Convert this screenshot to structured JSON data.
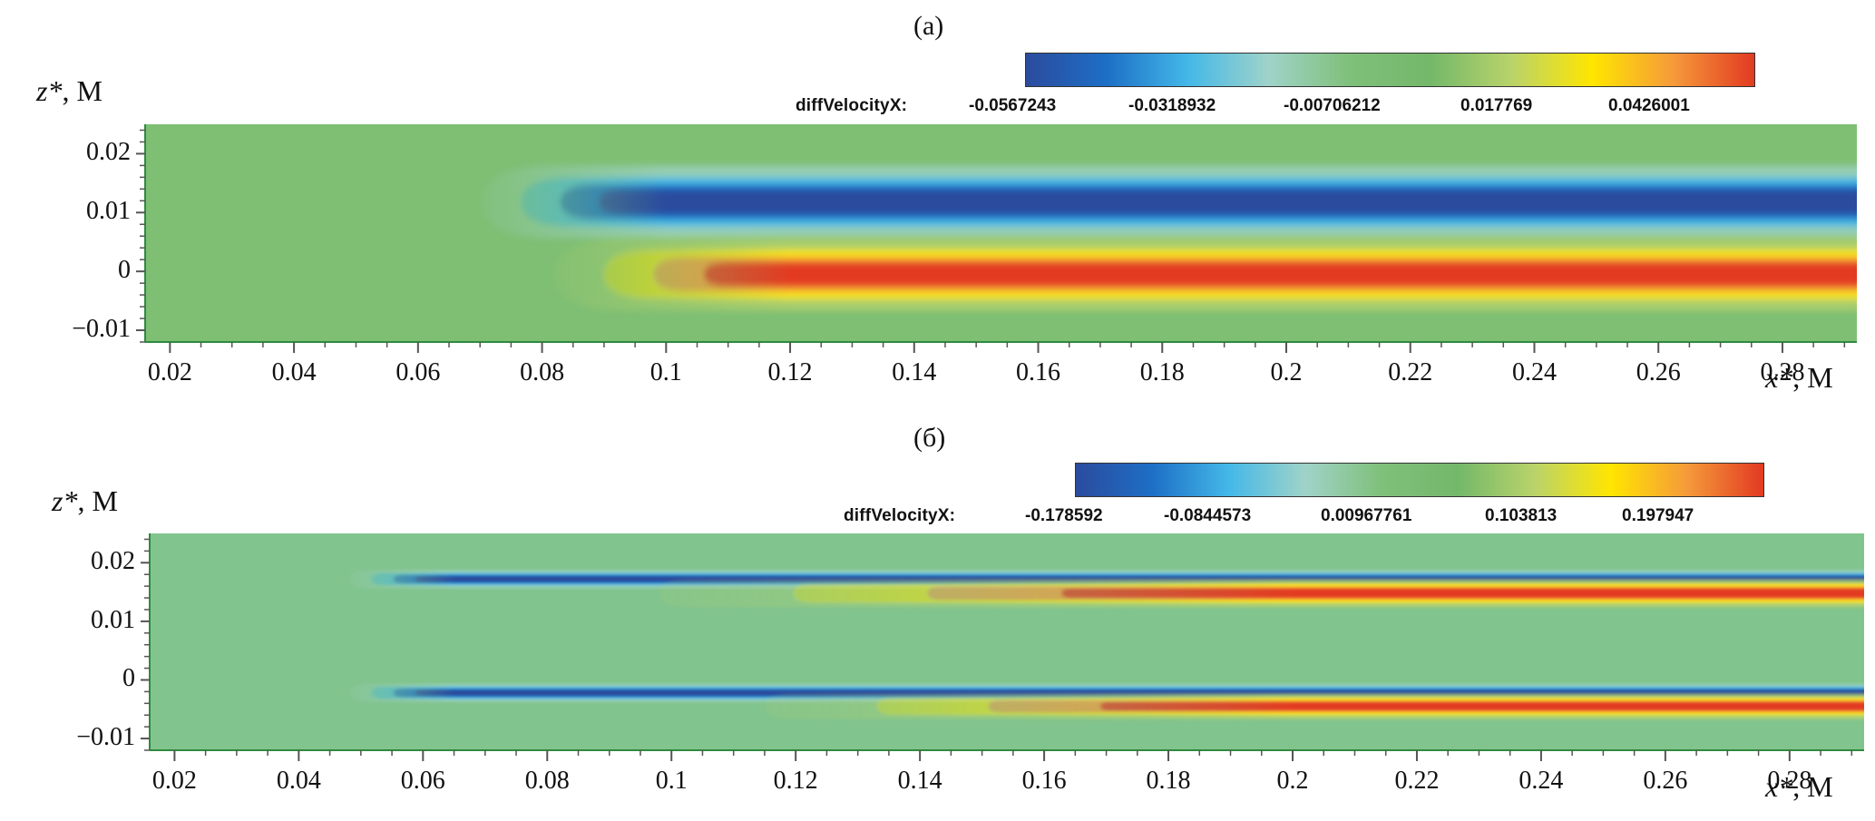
{
  "chart_data": [
    {
      "type": "heatmap",
      "panel_label": "(a)",
      "title": "(a)",
      "xlabel_var": "x*",
      "xlabel_unit": ", M",
      "ylabel_var": "z*",
      "ylabel_unit": ", M",
      "xlim": [
        0.016,
        0.292
      ],
      "ylim": [
        -0.012,
        0.025
      ],
      "x_ticks": [
        "0.02",
        "0.04",
        "0.06",
        "0.08",
        "0.1",
        "0.12",
        "0.14",
        "0.16",
        "0.18",
        "0.2",
        "0.22",
        "0.24",
        "0.26",
        "0.28"
      ],
      "x_tick_values": [
        0.02,
        0.04,
        0.06,
        0.08,
        0.1,
        0.12,
        0.14,
        0.16,
        0.18,
        0.2,
        0.22,
        0.24,
        0.26,
        0.28
      ],
      "y_ticks": [
        "0.02",
        "0.01",
        "0",
        "−0.01"
      ],
      "y_tick_values": [
        0.02,
        0.01,
        0,
        -0.01
      ],
      "colorbar": {
        "variable": "diffVelocityX:",
        "tick_labels": [
          "-0.0567243",
          "-0.0318932",
          "-0.00706212",
          "0.017769",
          "0.0426001"
        ],
        "min": -0.0567243,
        "max": 0.0426001,
        "colormap": [
          "#2b4b9e",
          "#1d6fc6",
          "#44b8e8",
          "#9fd3c9",
          "#7fc07a",
          "#74b86a",
          "#b9d36a",
          "#ffe600",
          "#f59a3a",
          "#e23a22"
        ]
      },
      "background": "#7ebf74",
      "structures": [
        {
          "name": "low-velocity-band",
          "sign": "negative",
          "z_center": 0.0118,
          "z_halfwidth": 0.0028,
          "x_onset": 0.065,
          "x_full": 0.1,
          "peak_level": 0.0,
          "fade_start": 0.045
        },
        {
          "name": "high-velocity-band",
          "sign": "positive",
          "z_center": -0.0005,
          "z_halfwidth": 0.0028,
          "x_onset": 0.075,
          "x_full": 0.12,
          "peak_level": 1.0,
          "fade_start": 0.055
        }
      ]
    },
    {
      "type": "heatmap",
      "panel_label": "(б)",
      "title": "(б)",
      "xlabel_var": "x*",
      "xlabel_unit": ", M",
      "ylabel_var": "z*",
      "ylabel_unit": ", M",
      "xlim": [
        0.016,
        0.292
      ],
      "ylim": [
        -0.012,
        0.025
      ],
      "x_ticks": [
        "0.02",
        "0.04",
        "0.06",
        "0.08",
        "0.1",
        "0.12",
        "0.14",
        "0.16",
        "0.18",
        "0.2",
        "0.22",
        "0.24",
        "0.26",
        "0.28"
      ],
      "x_tick_values": [
        0.02,
        0.04,
        0.06,
        0.08,
        0.1,
        0.12,
        0.14,
        0.16,
        0.18,
        0.2,
        0.22,
        0.24,
        0.26,
        0.28
      ],
      "y_ticks": [
        "0.02",
        "0.01",
        "0",
        "−0.01"
      ],
      "y_tick_values": [
        0.02,
        0.01,
        0,
        -0.01
      ],
      "colorbar": {
        "variable": "diffVelocityX:",
        "tick_labels": [
          "-0.178592",
          "-0.0844573",
          "0.00967761",
          "0.103813",
          "0.197947"
        ],
        "min": -0.178592,
        "max": 0.197947,
        "colormap": [
          "#2b4b9e",
          "#1d6fc6",
          "#44b8e8",
          "#9fd3c9",
          "#7fc07a",
          "#74b86a",
          "#b9d36a",
          "#ffe600",
          "#f59a3a",
          "#e23a22"
        ]
      },
      "background": "#82c48e",
      "structures": [
        {
          "name": "upper-negative-streak",
          "sign": "negative",
          "z_center": 0.0172,
          "z_halfwidth": 0.0007,
          "x_onset": 0.045,
          "x_full": 0.065
        },
        {
          "name": "upper-positive-streak",
          "sign": "positive",
          "z_center": 0.0148,
          "z_halfwidth": 0.0011,
          "x_onset": 0.08,
          "x_full": 0.2
        },
        {
          "name": "lower-negative-streak",
          "sign": "negative",
          "z_center": -0.0022,
          "z_halfwidth": 0.0007,
          "x_onset": 0.045,
          "x_full": 0.065
        },
        {
          "name": "lower-positive-streak",
          "sign": "positive",
          "z_center": -0.0045,
          "z_halfwidth": 0.001,
          "x_onset": 0.1,
          "x_full": 0.2
        }
      ]
    }
  ]
}
